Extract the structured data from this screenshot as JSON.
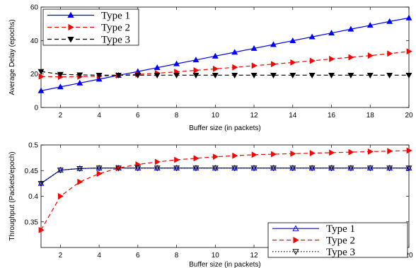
{
  "chart_data": [
    {
      "type": "line",
      "xlabel": "Buffer size (in packets)",
      "ylabel": "Average Delay (epochs)",
      "xlim": [
        1,
        20
      ],
      "ylim": [
        0,
        60
      ],
      "xticks": [
        2,
        4,
        6,
        8,
        10,
        12,
        14,
        16,
        18,
        20
      ],
      "yticks": [
        0,
        20,
        40,
        60
      ],
      "ytick_labels": [
        "0",
        "20",
        "40",
        "60"
      ],
      "grid": false,
      "legend_position": "top-left",
      "x": [
        1,
        2,
        3,
        4,
        5,
        6,
        7,
        8,
        9,
        10,
        11,
        12,
        13,
        14,
        15,
        16,
        17,
        18,
        19,
        20
      ],
      "series": [
        {
          "name": "Type 1",
          "color": "#0000ff",
          "style": "solid",
          "marker": "triangle-up",
          "values": [
            10,
            12.3,
            14.6,
            16.9,
            19.2,
            21.5,
            23.8,
            26.1,
            28.4,
            30.7,
            33.0,
            35.3,
            37.6,
            39.9,
            42.2,
            44.5,
            46.8,
            49.1,
            51.4,
            53.5
          ]
        },
        {
          "name": "Type 2",
          "color": "#ff0000",
          "style": "dashed",
          "marker": "triangle-right",
          "values": [
            18.5,
            18.3,
            18.4,
            18.7,
            19.2,
            19.8,
            20.5,
            21.3,
            22.2,
            23.1,
            24.0,
            25.0,
            25.9,
            26.9,
            27.9,
            29.0,
            30.0,
            31.0,
            32.2,
            33.5
          ]
        },
        {
          "name": "Type 3",
          "color": "#000000",
          "style": "dashed",
          "marker": "triangle-down",
          "values": [
            21.5,
            19.8,
            19.5,
            19.3,
            19.3,
            19.3,
            19.3,
            19.3,
            19.3,
            19.3,
            19.3,
            19.3,
            19.3,
            19.3,
            19.3,
            19.3,
            19.3,
            19.3,
            19.3,
            19.3
          ]
        }
      ]
    },
    {
      "type": "line",
      "xlabel": "Buffer size (in packets)",
      "ylabel": "Throughput (Packets/epoch)",
      "xlim": [
        1,
        20
      ],
      "ylim": [
        0.3,
        0.5
      ],
      "xticks": [
        2,
        4,
        6,
        8,
        10,
        12,
        14,
        16,
        18,
        20
      ],
      "yticks": [
        0.35,
        0.4,
        0.45,
        0.5
      ],
      "ytick_labels": [
        "0.35",
        "0.4",
        "0.45",
        "0.5"
      ],
      "grid": false,
      "legend_position": "bottom-right",
      "x": [
        1,
        2,
        3,
        4,
        5,
        6,
        7,
        8,
        9,
        10,
        11,
        12,
        13,
        14,
        15,
        16,
        17,
        18,
        19,
        20
      ],
      "series": [
        {
          "name": "Type 1",
          "color": "#0000ff",
          "style": "solid",
          "marker": "triangle-up",
          "values": [
            0.425,
            0.451,
            0.454,
            0.455,
            0.455,
            0.455,
            0.455,
            0.455,
            0.455,
            0.455,
            0.455,
            0.455,
            0.455,
            0.455,
            0.455,
            0.455,
            0.455,
            0.455,
            0.455,
            0.455
          ]
        },
        {
          "name": "Type 2",
          "color": "#ff0000",
          "style": "dashed",
          "marker": "triangle-right",
          "values": [
            0.334,
            0.4,
            0.428,
            0.444,
            0.455,
            0.462,
            0.467,
            0.471,
            0.474,
            0.477,
            0.479,
            0.481,
            0.482,
            0.483,
            0.484,
            0.485,
            0.486,
            0.487,
            0.488,
            0.489
          ]
        },
        {
          "name": "Type 3",
          "color": "#000000",
          "style": "dotted",
          "marker": "triangle-down",
          "values": [
            0.425,
            0.451,
            0.454,
            0.455,
            0.455,
            0.455,
            0.455,
            0.455,
            0.455,
            0.455,
            0.455,
            0.455,
            0.455,
            0.455,
            0.455,
            0.455,
            0.455,
            0.455,
            0.455,
            0.455
          ]
        }
      ]
    }
  ]
}
